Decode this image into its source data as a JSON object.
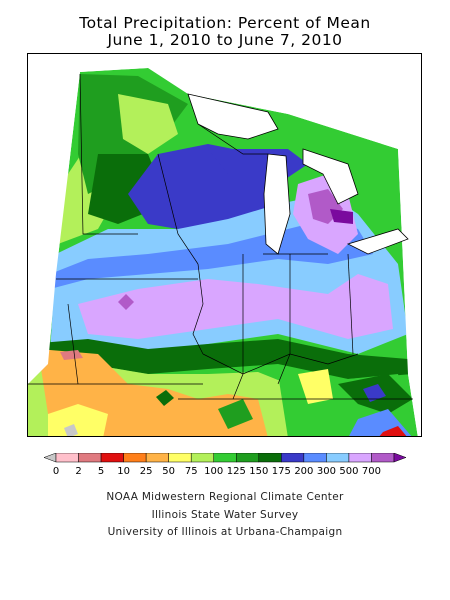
{
  "title": {
    "line1": "Total Precipitation: Percent of Mean",
    "line2": "June 1, 2010 to June 7, 2010"
  },
  "legend": {
    "labels": [
      "0",
      "2",
      "5",
      "10",
      "25",
      "50",
      "75",
      "100",
      "125",
      "150",
      "175",
      "200",
      "300",
      "500",
      "700"
    ],
    "colors": [
      "#c8c8c8",
      "#ffc0cb",
      "#e07a80",
      "#e01010",
      "#ff7f1a",
      "#ffb347",
      "#ffff66",
      "#b3f05a",
      "#33cc33",
      "#1f9e1f",
      "#0a6e0a",
      "#3a3ac8",
      "#5a8cff",
      "#88ccff",
      "#d9a6ff",
      "#b15ac8",
      "#7a0a9e"
    ]
  },
  "credits": [
    "NOAA Midwestern Regional Climate Center",
    "Illinois State Water Survey",
    "University of Illinois at Urbana-Champaign"
  ]
}
